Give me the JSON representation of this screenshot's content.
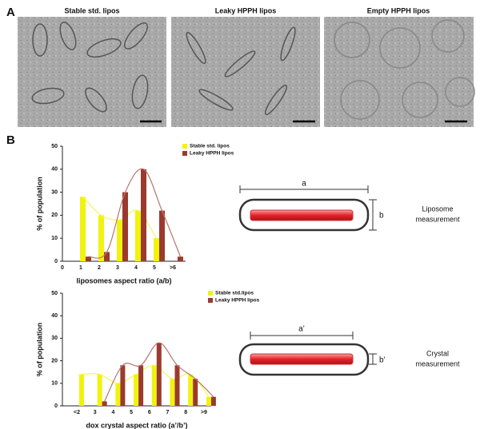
{
  "panel_a": {
    "label": "A",
    "images": [
      {
        "title": "Stable std. lipos"
      },
      {
        "title": "Leaky HPPH lipos"
      },
      {
        "title": "Empty HPPH lipos"
      }
    ]
  },
  "panel_b": {
    "label": "B"
  },
  "chart_data": [
    {
      "type": "bar",
      "ylabel": "% of population",
      "xlabel": "liposomes aspect ratio (a/b)",
      "categories": [
        "0",
        "1",
        "2",
        "3",
        "4",
        "5",
        ">6"
      ],
      "series": [
        {
          "name": "Stable std. lipos",
          "color": "#f2f20f",
          "values": [
            null,
            28,
            20,
            18,
            22,
            10,
            null
          ]
        },
        {
          "name": "Leaky HPPH lipos",
          "color": "#9b3a2e",
          "values": [
            null,
            2,
            4,
            30,
            40,
            22,
            2
          ]
        }
      ],
      "ylim": [
        0,
        50
      ],
      "yticks": [
        0,
        10,
        20,
        30,
        40,
        50
      ],
      "legend": "upper right",
      "fit_curve": true
    },
    {
      "type": "bar",
      "ylabel": "% of population",
      "xlabel": "dox crystal aspect ratio (a’/b’)",
      "categories": [
        "<2",
        "3",
        "4",
        "5",
        "6",
        "7",
        "8",
        ">9"
      ],
      "series": [
        {
          "name": "Stable std.lipos",
          "color": "#f2f20f",
          "values": [
            14,
            14,
            10,
            14,
            18,
            12,
            14,
            4
          ]
        },
        {
          "name": "Leaky HPPH lipos",
          "color": "#9b3a2e",
          "values": [
            null,
            2,
            18,
            18,
            28,
            18,
            12,
            4
          ]
        }
      ],
      "ylim": [
        0,
        50
      ],
      "yticks": [
        0,
        10,
        20,
        30,
        40,
        50
      ],
      "legend": "upper right",
      "fit_curve": true
    }
  ],
  "diagrams": [
    {
      "width_label": "a",
      "height_label": "b",
      "caption": [
        "Liposome",
        "measurement"
      ]
    },
    {
      "width_label": "a’",
      "height_label": "b’",
      "caption": [
        "Crystal",
        "measurement"
      ]
    }
  ]
}
